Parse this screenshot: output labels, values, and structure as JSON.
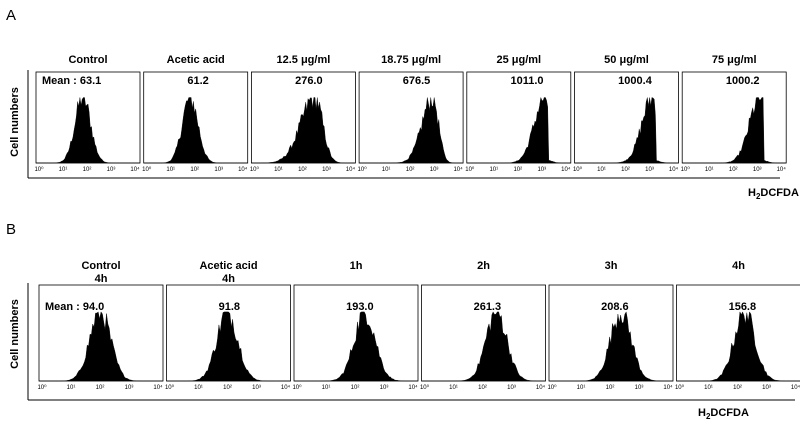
{
  "chart_data": [
    {
      "type": "histogram",
      "panel_label": "A",
      "ylabel": "Cell numbers",
      "xlabel_main": "H",
      "xlabel_sub": "2",
      "xlabel_rest": "DCFDA",
      "x_scale": "log",
      "x_ticks": [
        "10⁰",
        "10¹",
        "10²",
        "10³",
        "10⁴"
      ],
      "plots": [
        {
          "condition": "Control",
          "condition_line2": "",
          "mean_label": "Mean : 63.1",
          "mean": 63.1
        },
        {
          "condition": "Acetic acid",
          "condition_line2": "",
          "mean_label": "61.2",
          "mean": 61.2
        },
        {
          "condition": "12.5 μg/ml",
          "condition_line2": "",
          "mean_label": "276.0",
          "mean": 276.0
        },
        {
          "condition": "18.75 μg/ml",
          "condition_line2": "",
          "mean_label": "676.5",
          "mean": 676.5
        },
        {
          "condition": "25 μg/ml",
          "condition_line2": "",
          "mean_label": "1011.0",
          "mean": 1011.0
        },
        {
          "condition": "50 μg/ml",
          "condition_line2": "",
          "mean_label": "1000.4",
          "mean": 1000.4
        },
        {
          "condition": "75 μg/ml",
          "condition_line2": "",
          "mean_label": "1000.2",
          "mean": 1000.2
        }
      ]
    },
    {
      "type": "histogram",
      "panel_label": "B",
      "ylabel": "Cell numbers",
      "xlabel_main": "H",
      "xlabel_sub": "2",
      "xlabel_rest": "DCFDA",
      "x_scale": "log",
      "x_ticks": [
        "10⁰",
        "10¹",
        "10²",
        "10³",
        "10⁴"
      ],
      "plots": [
        {
          "condition": "Control",
          "condition_line2": "4h",
          "mean_label": "Mean :  94.0",
          "mean": 94.0
        },
        {
          "condition": "Acetic acid",
          "condition_line2": "4h",
          "mean_label": "91.8",
          "mean": 91.8
        },
        {
          "condition": "1h",
          "condition_line2": "",
          "mean_label": "193.0",
          "mean": 193.0
        },
        {
          "condition": "2h",
          "condition_line2": "",
          "mean_label": "261.3",
          "mean": 261.3
        },
        {
          "condition": "3h",
          "condition_line2": "",
          "mean_label": "208.6",
          "mean": 208.6
        },
        {
          "condition": "4h",
          "condition_line2": "",
          "mean_label": "156.8",
          "mean": 156.8
        }
      ]
    }
  ]
}
